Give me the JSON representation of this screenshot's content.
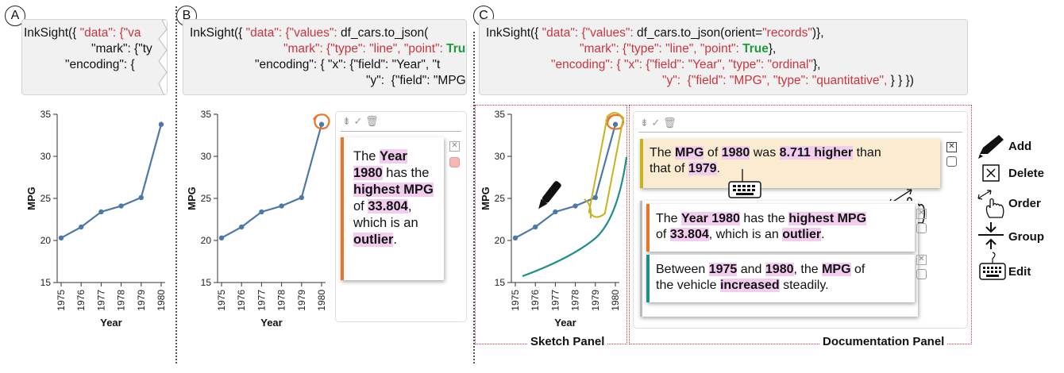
{
  "badges": {
    "a": "A",
    "b": "B",
    "c": "C"
  },
  "code": {
    "a": {
      "l1a": "InkSight({ ",
      "l1b": "\"data\": {\"va",
      "l2": "\"mark\": {\"ty",
      "l3": "\"encoding\": {"
    },
    "b": {
      "l1a": "InkSight({ ",
      "l1b": "\"data\": {\"values\": ",
      "l1c": "df_cars.to_json(",
      "l2a": "\"mark\": {\"type\": \"line\", \"point\": ",
      "l2b": "True",
      "l3a": "\"encoding\": { \"x\": {\"field\": \"Year\", \"t",
      "l4a": "\"y\":  {\"field\": \"MPG\", \""
    },
    "c": {
      "l1a": "InkSight({ ",
      "l1b": "\"data\": {\"values\": ",
      "l1c": "df_cars.to_json(orient=",
      "l1d": "\"records\"",
      "l1e": ")},",
      "l2a": "\"mark\": {\"type\": \"line\", \"point\": ",
      "l2b": "True",
      "l2c": "},",
      "l3a": "\"encoding\": { \"x\": {\"field\": \"Year\", \"type\": \"ordinal\"",
      "l3b": "},",
      "l4a": "\"y\":  {\"field\": \"MPG\", \"type\": \"quantitative\", ",
      "l4b": "} } })"
    }
  },
  "chart_data": {
    "type": "line",
    "categories": [
      "1975",
      "1976",
      "1977",
      "1978",
      "1979",
      "1980"
    ],
    "series": [
      {
        "values": [
          20.3,
          21.6,
          23.4,
          24.1,
          25.1,
          33.8
        ]
      }
    ],
    "xlabel": "Year",
    "ylabel": "MPG",
    "ylim": [
      15,
      35
    ],
    "yticks": [
      "15",
      "20",
      "25",
      "30",
      "35"
    ],
    "color": "#4e79a7"
  },
  "cardB": {
    "bar_color": "#e8752a",
    "t1": "The ",
    "t2": "Year",
    "t3": "1980",
    "t4": " has the",
    "t5": "highest MPG",
    "t6": "of ",
    "t7": "33.804",
    "t8": ",",
    "t9": "which is an",
    "t10": "outlier",
    "t11": "."
  },
  "cardC1": {
    "bar_color": "#c9b21f",
    "bg": "#fbecd1",
    "t1": "The ",
    "t2": "MPG",
    "t3": " of ",
    "t4": "1980",
    "t5": " was ",
    "t6": "8.711 higher",
    "t7": " than",
    "t8": "that of ",
    "t9": "1979",
    "t10": "."
  },
  "cardC2": {
    "bar_color": "#e8752a",
    "t1": "The ",
    "t2": "Year 1980",
    "t3": " has the ",
    "t4": "highest MPG",
    "t5": "of ",
    "t6": "33.804",
    "t7": ", which is an ",
    "t8": "outlier",
    "t9": "."
  },
  "cardC3": {
    "bar_color": "#1f8f8a",
    "t1": "Between ",
    "t2": "1975",
    "t3": " and ",
    "t4": "1980",
    "t5": ", the ",
    "t6": "MPG",
    "t7": " of",
    "t8": "the vehicle ",
    "t9": "increased",
    "t10": " steadily."
  },
  "panels": {
    "sketch": "Sketch Panel",
    "documentation": "Documentation Panel"
  },
  "legend": {
    "add": "Add",
    "delete": "Delete",
    "order": "Order",
    "group": "Group",
    "edit": "Edit"
  },
  "colors": {
    "sketch_orange": "#e8752a",
    "sketch_yellow": "#c9b21f",
    "sketch_teal": "#1f8f8a",
    "panel_border": "#c8353f"
  }
}
